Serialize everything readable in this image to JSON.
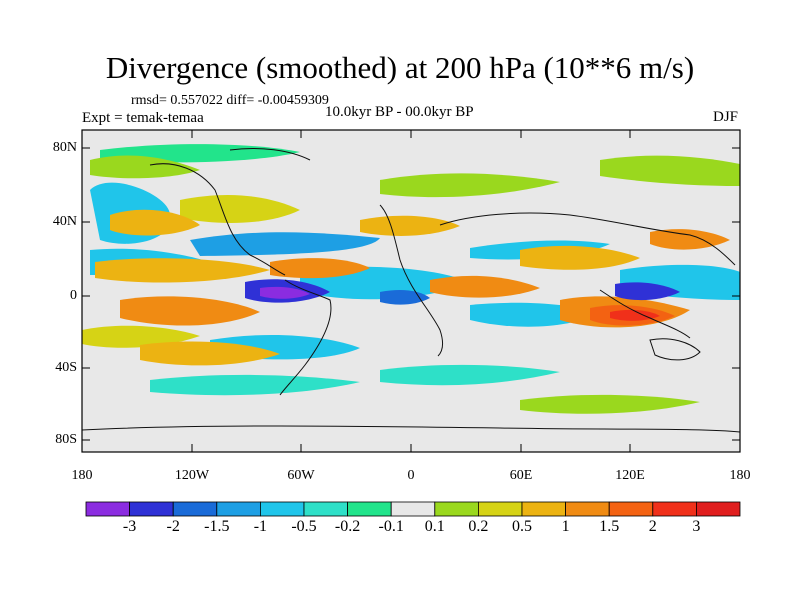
{
  "title": "Divergence (smoothed) at 200 hPa (10**6 m/s)",
  "stats": "rmsd= 0.557022 diff= -0.00459309",
  "experiment": "Expt = temak-temaa",
  "period": "10.0kyr BP - 00.0kyr BP",
  "season": "DJF",
  "lat_labels": [
    "80N",
    "40N",
    "0",
    "40S",
    "80S"
  ],
  "lon_labels": [
    "180",
    "120W",
    "60W",
    "0",
    "60E",
    "120E",
    "180"
  ],
  "colorbar": {
    "colors": [
      "#8b2ce0",
      "#2f31d6",
      "#1a6bd8",
      "#1e9fe4",
      "#20c5ea",
      "#2ee0c8",
      "#22e48b",
      "#e8e8e8",
      "#9ad81e",
      "#d6d315",
      "#ecb312",
      "#f08b13",
      "#f36212",
      "#f0301a",
      "#e01e1e"
    ],
    "labels": [
      "-3",
      "-2",
      "-1.5",
      "-1",
      "-0.5",
      "-0.2",
      "-0.1",
      "0.1",
      "0.2",
      "0.5",
      "1",
      "1.5",
      "2",
      "3"
    ]
  }
}
